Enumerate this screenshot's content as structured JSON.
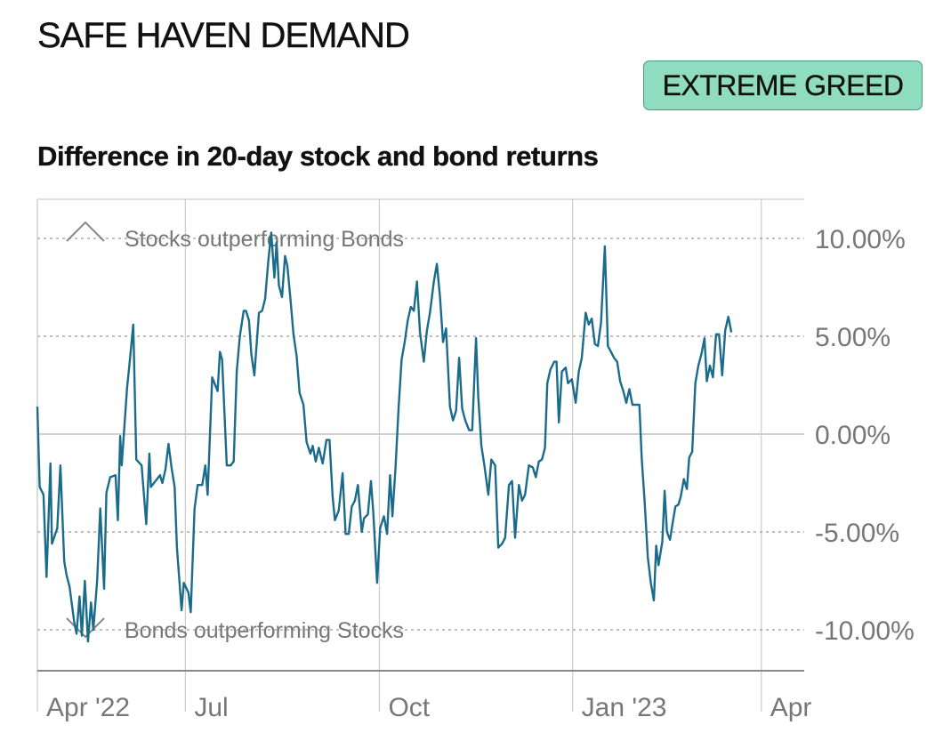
{
  "header": {
    "title": "SAFE HAVEN DEMAND",
    "badge": "EXTREME GREED",
    "subtitle": "Difference in 20-day stock and bond returns"
  },
  "colors": {
    "line": "#1a6b8c",
    "badge_bg": "#8fdcc0",
    "badge_border": "#4a9a7e",
    "grid": "#cccccc",
    "dotted": "#aaaaaa",
    "text": "#111111",
    "muted": "#777777"
  },
  "chart_data": {
    "type": "line",
    "title": "SAFE HAVEN DEMAND",
    "subtitle": "Difference in 20-day stock and bond returns",
    "ylim": [
      -12,
      12
    ],
    "xlim": [
      0,
      1
    ],
    "grid": true,
    "y_ticks": [
      {
        "value": 10,
        "label": "10.00%"
      },
      {
        "value": 5,
        "label": "5.00%"
      },
      {
        "value": 0,
        "label": "0.00%"
      },
      {
        "value": -5,
        "label": "-5.00%"
      },
      {
        "value": -10,
        "label": "-10.00%"
      }
    ],
    "x_ticks": [
      {
        "value": 0,
        "label": "Apr '22"
      },
      {
        "value": 0.193,
        "label": "Jul"
      },
      {
        "value": 0.446,
        "label": "Oct"
      },
      {
        "value": 0.698,
        "label": "Jan '23"
      },
      {
        "value": 0.944,
        "label": "Apr"
      }
    ],
    "annotations": [
      {
        "text": "Stocks outperforming Bonds",
        "direction": "up",
        "y": 10
      },
      {
        "text": "Bonds outperforming Stocks",
        "direction": "down",
        "y": -10
      }
    ],
    "series": [
      {
        "points": [
          [
            0.0,
            1.4
          ],
          [
            0.003,
            -2.7
          ],
          [
            0.008,
            -3.1
          ],
          [
            0.012,
            -7.3
          ],
          [
            0.017,
            -1.5
          ],
          [
            0.019,
            -5.6
          ],
          [
            0.026,
            -4.8
          ],
          [
            0.03,
            -1.6
          ],
          [
            0.035,
            -6.5
          ],
          [
            0.038,
            -7.2
          ],
          [
            0.042,
            -7.8
          ],
          [
            0.048,
            -9.6
          ],
          [
            0.051,
            -10.2
          ],
          [
            0.055,
            -8.3
          ],
          [
            0.058,
            -10.3
          ],
          [
            0.062,
            -7.5
          ],
          [
            0.066,
            -10.6
          ],
          [
            0.07,
            -8.6
          ],
          [
            0.073,
            -10.0
          ],
          [
            0.078,
            -7.5
          ],
          [
            0.082,
            -3.8
          ],
          [
            0.087,
            -7.9
          ],
          [
            0.09,
            -3.0
          ],
          [
            0.095,
            -2.2
          ],
          [
            0.102,
            -2.1
          ],
          [
            0.105,
            -4.4
          ],
          [
            0.108,
            -0.1
          ],
          [
            0.11,
            -1.6
          ],
          [
            0.117,
            2.4
          ],
          [
            0.12,
            3.5
          ],
          [
            0.125,
            5.6
          ],
          [
            0.129,
            -1.3
          ],
          [
            0.136,
            -1.6
          ],
          [
            0.142,
            -4.6
          ],
          [
            0.146,
            -1.0
          ],
          [
            0.148,
            -2.7
          ],
          [
            0.154,
            -2.4
          ],
          [
            0.16,
            -2.1
          ],
          [
            0.163,
            -2.5
          ],
          [
            0.167,
            -1.8
          ],
          [
            0.171,
            -0.5
          ],
          [
            0.175,
            -1.7
          ],
          [
            0.179,
            -2.7
          ],
          [
            0.182,
            -5.8
          ],
          [
            0.188,
            -9.0
          ],
          [
            0.191,
            -7.6
          ],
          [
            0.197,
            -8.1
          ],
          [
            0.2,
            -9.1
          ],
          [
            0.205,
            -3.8
          ],
          [
            0.209,
            -2.6
          ],
          [
            0.215,
            -2.6
          ],
          [
            0.219,
            -1.6
          ],
          [
            0.222,
            -3.1
          ],
          [
            0.228,
            2.9
          ],
          [
            0.231,
            2.6
          ],
          [
            0.235,
            2.2
          ],
          [
            0.238,
            4.2
          ],
          [
            0.241,
            3.8
          ],
          [
            0.247,
            -1.6
          ],
          [
            0.252,
            -1.6
          ],
          [
            0.256,
            -1.4
          ],
          [
            0.26,
            3.2
          ],
          [
            0.264,
            5.0
          ],
          [
            0.269,
            6.3
          ],
          [
            0.272,
            6.3
          ],
          [
            0.276,
            5.8
          ],
          [
            0.279,
            4.1
          ],
          [
            0.283,
            3.0
          ],
          [
            0.289,
            6.2
          ],
          [
            0.293,
            6.3
          ],
          [
            0.297,
            6.9
          ],
          [
            0.301,
            8.8
          ],
          [
            0.305,
            10.3
          ],
          [
            0.309,
            8.0
          ],
          [
            0.312,
            9.8
          ],
          [
            0.315,
            7.6
          ],
          [
            0.319,
            7.0
          ],
          [
            0.323,
            9.1
          ],
          [
            0.326,
            8.6
          ],
          [
            0.33,
            6.9
          ],
          [
            0.334,
            5.1
          ],
          [
            0.338,
            4.0
          ],
          [
            0.342,
            2.1
          ],
          [
            0.347,
            1.5
          ],
          [
            0.351,
            -0.4
          ],
          [
            0.356,
            -1.0
          ],
          [
            0.359,
            -0.6
          ],
          [
            0.363,
            -1.4
          ],
          [
            0.367,
            -0.7
          ],
          [
            0.372,
            -1.5
          ],
          [
            0.377,
            -0.3
          ],
          [
            0.381,
            -0.3
          ],
          [
            0.385,
            -3.2
          ],
          [
            0.388,
            -4.4
          ],
          [
            0.393,
            -3.9
          ],
          [
            0.398,
            -2.0
          ],
          [
            0.402,
            -5.1
          ],
          [
            0.406,
            -5.1
          ],
          [
            0.41,
            -3.7
          ],
          [
            0.414,
            -3.4
          ],
          [
            0.418,
            -2.6
          ],
          [
            0.423,
            -5.0
          ],
          [
            0.426,
            -4.3
          ],
          [
            0.431,
            -4.1
          ],
          [
            0.435,
            -2.4
          ],
          [
            0.438,
            -4.0
          ],
          [
            0.443,
            -7.6
          ],
          [
            0.447,
            -4.8
          ],
          [
            0.452,
            -4.2
          ],
          [
            0.456,
            -5.1
          ],
          [
            0.46,
            -2.1
          ],
          [
            0.463,
            -4.2
          ],
          [
            0.467,
            -1.7
          ],
          [
            0.471,
            1.3
          ],
          [
            0.475,
            3.8
          ],
          [
            0.479,
            4.7
          ],
          [
            0.483,
            5.8
          ],
          [
            0.487,
            6.5
          ],
          [
            0.491,
            6.3
          ],
          [
            0.495,
            7.8
          ],
          [
            0.499,
            5.2
          ],
          [
            0.504,
            3.7
          ],
          [
            0.508,
            5.3
          ],
          [
            0.512,
            6.2
          ],
          [
            0.517,
            7.8
          ],
          [
            0.521,
            8.7
          ],
          [
            0.525,
            7.0
          ],
          [
            0.529,
            4.7
          ],
          [
            0.533,
            5.4
          ],
          [
            0.538,
            1.4
          ],
          [
            0.542,
            0.7
          ],
          [
            0.546,
            1.2
          ],
          [
            0.55,
            3.9
          ],
          [
            0.554,
            1.3
          ],
          [
            0.558,
            0.7
          ],
          [
            0.563,
            0.2
          ],
          [
            0.567,
            0.2
          ],
          [
            0.572,
            4.9
          ],
          [
            0.575,
            1.9
          ],
          [
            0.579,
            -0.6
          ],
          [
            0.583,
            -1.6
          ],
          [
            0.588,
            -3.1
          ],
          [
            0.592,
            -1.3
          ],
          [
            0.597,
            -1.6
          ],
          [
            0.601,
            -5.8
          ],
          [
            0.606,
            -5.6
          ],
          [
            0.61,
            -5.3
          ],
          [
            0.615,
            -2.6
          ],
          [
            0.619,
            -2.4
          ],
          [
            0.623,
            -5.3
          ],
          [
            0.628,
            -2.6
          ],
          [
            0.632,
            -3.4
          ],
          [
            0.636,
            -3.1
          ],
          [
            0.641,
            -1.6
          ],
          [
            0.646,
            -1.7
          ],
          [
            0.65,
            -2.2
          ],
          [
            0.654,
            -1.4
          ],
          [
            0.658,
            -1.3
          ],
          [
            0.662,
            -0.7
          ],
          [
            0.665,
            2.6
          ],
          [
            0.669,
            3.3
          ],
          [
            0.674,
            3.7
          ],
          [
            0.677,
            3.7
          ],
          [
            0.68,
            0.6
          ],
          [
            0.684,
            3.2
          ],
          [
            0.689,
            3.4
          ],
          [
            0.692,
            2.6
          ],
          [
            0.697,
            2.8
          ],
          [
            0.702,
            1.6
          ],
          [
            0.706,
            3.2
          ],
          [
            0.71,
            3.9
          ],
          [
            0.715,
            6.2
          ],
          [
            0.719,
            5.6
          ],
          [
            0.723,
            5.9
          ],
          [
            0.727,
            4.6
          ],
          [
            0.731,
            4.5
          ],
          [
            0.735,
            5.7
          ],
          [
            0.74,
            9.6
          ],
          [
            0.744,
            4.5
          ],
          [
            0.748,
            4.2
          ],
          [
            0.752,
            3.9
          ],
          [
            0.756,
            3.7
          ],
          [
            0.76,
            2.7
          ],
          [
            0.764,
            2.2
          ],
          [
            0.768,
            1.6
          ],
          [
            0.772,
            2.3
          ],
          [
            0.776,
            1.5
          ],
          [
            0.78,
            1.5
          ],
          [
            0.785,
            1.5
          ],
          [
            0.788,
            -1.2
          ],
          [
            0.792,
            -3.5
          ],
          [
            0.796,
            -6.3
          ],
          [
            0.8,
            -7.6
          ],
          [
            0.804,
            -8.5
          ],
          [
            0.807,
            -5.7
          ],
          [
            0.81,
            -6.7
          ],
          [
            0.815,
            -5.5
          ],
          [
            0.818,
            -2.9
          ],
          [
            0.821,
            -5.0
          ],
          [
            0.825,
            -5.4
          ],
          [
            0.829,
            -4.4
          ],
          [
            0.832,
            -3.7
          ],
          [
            0.836,
            -3.6
          ],
          [
            0.839,
            -3.2
          ],
          [
            0.843,
            -2.3
          ],
          [
            0.847,
            -2.8
          ],
          [
            0.85,
            -1.2
          ],
          [
            0.854,
            -0.9
          ],
          [
            0.858,
            2.6
          ],
          [
            0.862,
            3.5
          ],
          [
            0.866,
            4.1
          ],
          [
            0.87,
            4.9
          ],
          [
            0.873,
            2.7
          ],
          [
            0.877,
            3.5
          ],
          [
            0.881,
            2.9
          ],
          [
            0.885,
            5.1
          ],
          [
            0.889,
            5.1
          ],
          [
            0.893,
            3.0
          ],
          [
            0.897,
            5.3
          ],
          [
            0.901,
            6.0
          ],
          [
            0.905,
            5.2
          ]
        ]
      }
    ]
  }
}
